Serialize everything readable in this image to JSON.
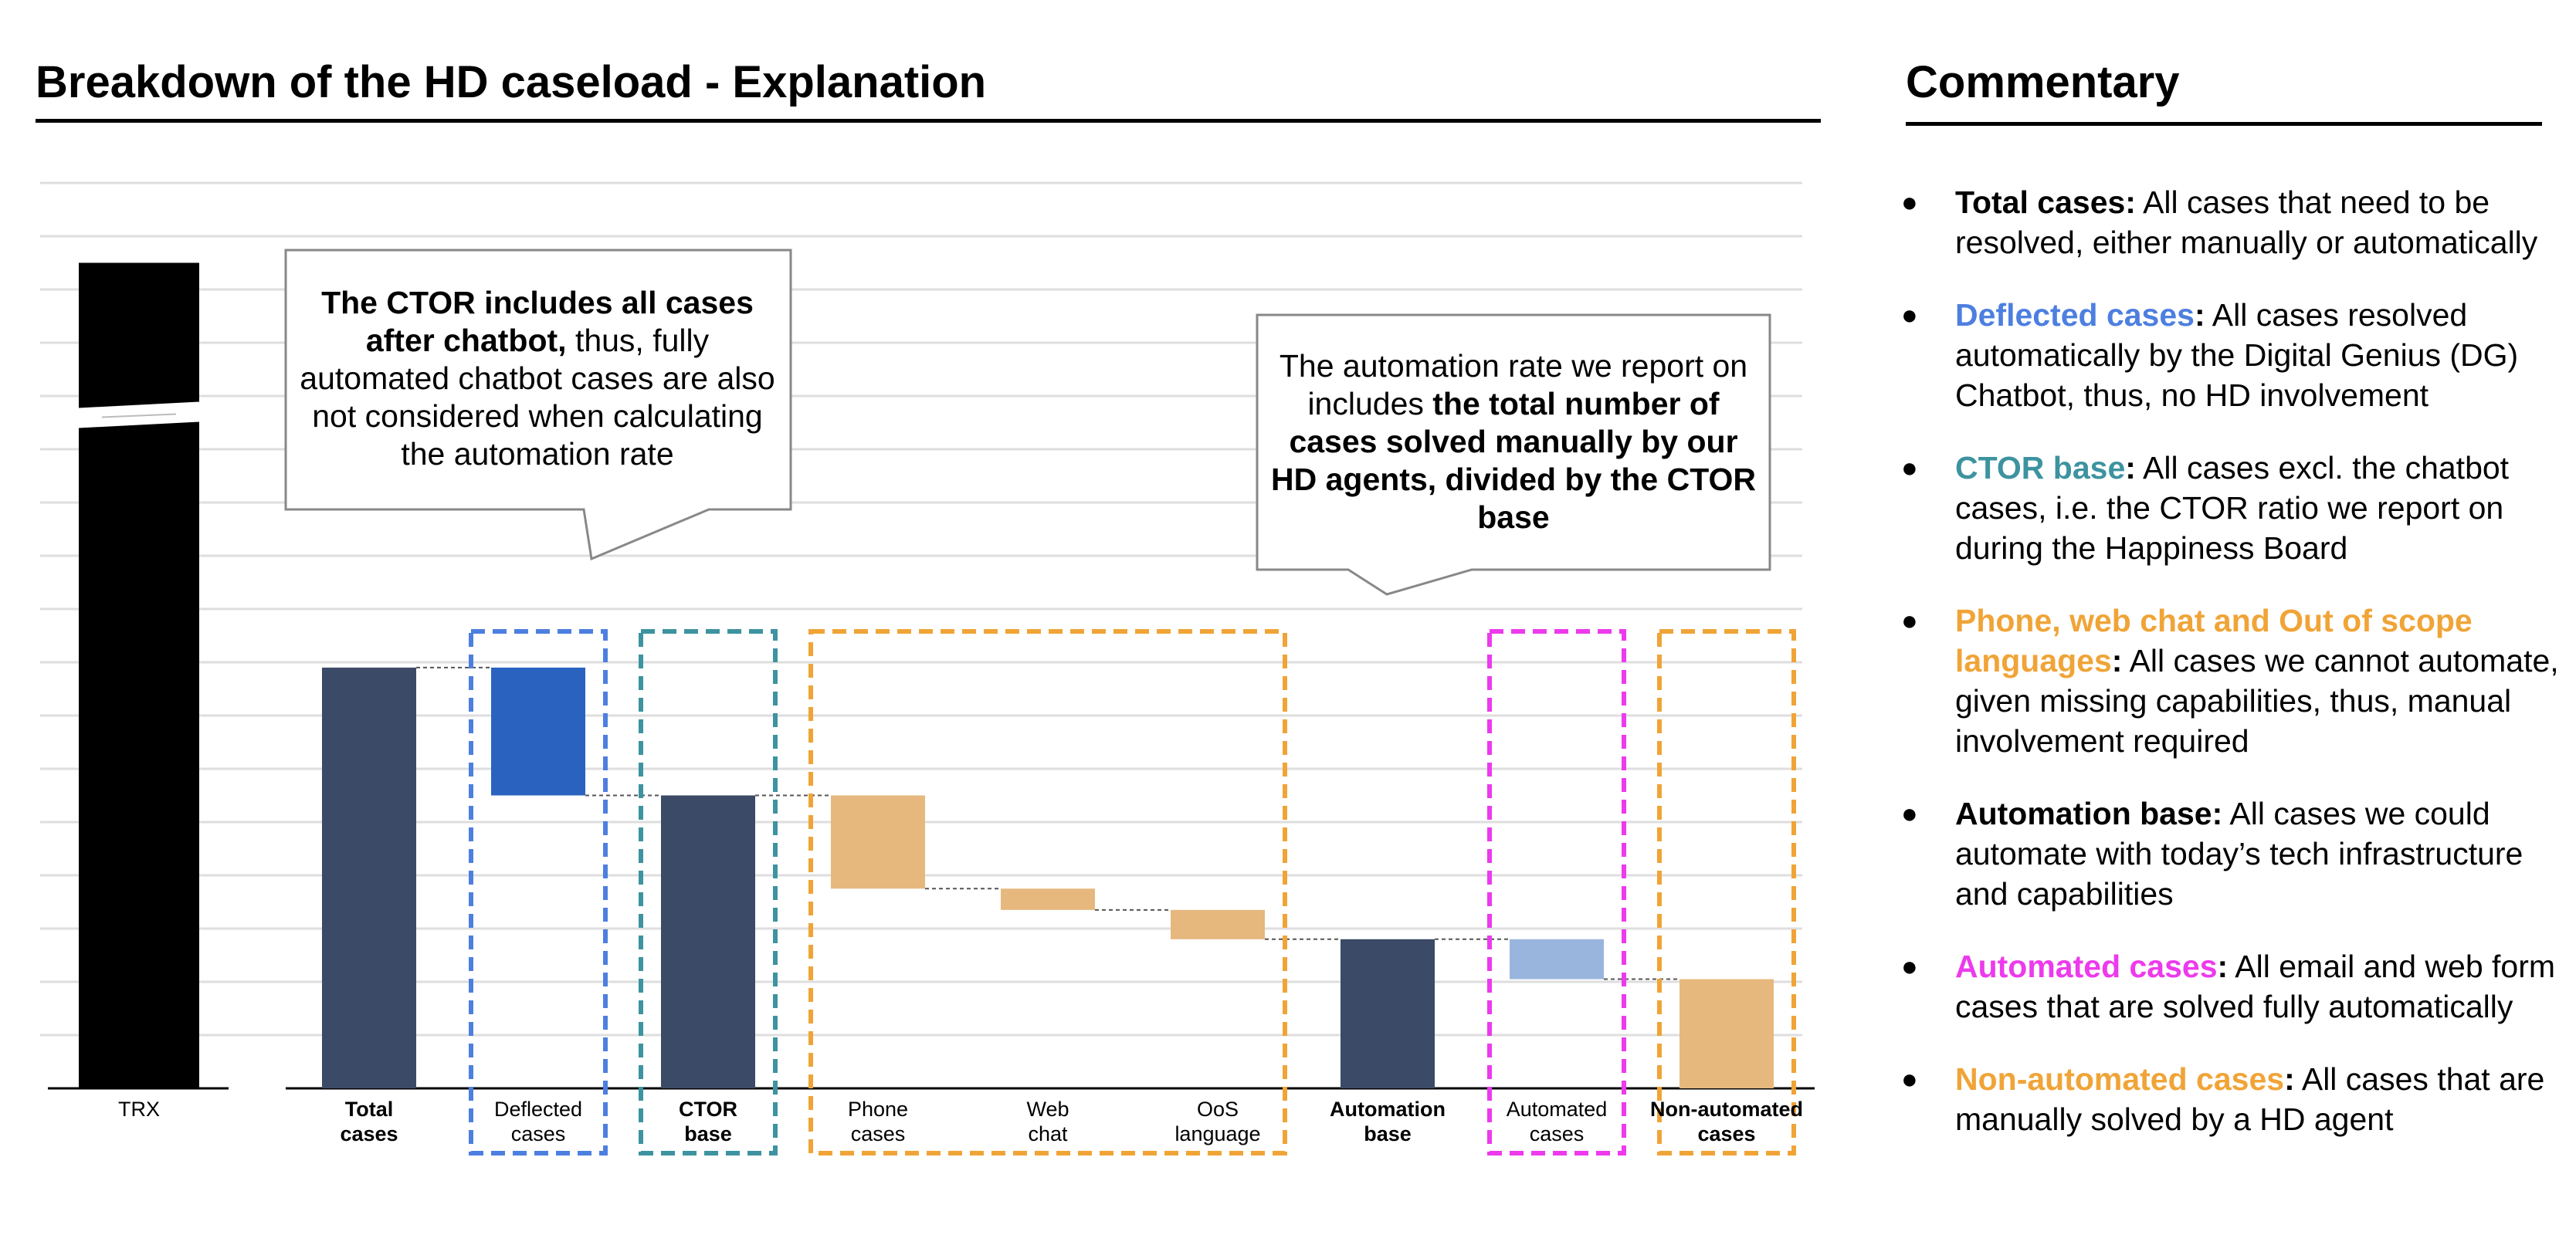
{
  "left_title": "Breakdown of the HD caseload - Explanation",
  "right_title": "Commentary",
  "chart_data": {
    "type": "bar",
    "subtype": "waterfall",
    "ylim": [
      0,
      170
    ],
    "grid": true,
    "categories": [
      "TRX",
      "Total cases",
      "Deflected cases",
      "CTOR base",
      "Phone cases",
      "Web chat",
      "OoS language",
      "Automation base",
      "Automated cases",
      "Non-automated cases"
    ],
    "category_labels": [
      {
        "line1": "TRX",
        "line2": "",
        "bold": false
      },
      {
        "line1": "Total",
        "line2": "cases",
        "bold": true
      },
      {
        "line1": "Deflected",
        "line2": "cases",
        "bold": false
      },
      {
        "line1": "CTOR",
        "line2": "base",
        "bold": true
      },
      {
        "line1": "Phone",
        "line2": "cases",
        "bold": false
      },
      {
        "line1": "Web",
        "line2": "chat",
        "bold": false
      },
      {
        "line1": "OoS",
        "line2": "language",
        "bold": false
      },
      {
        "line1": "Automation",
        "line2": "base",
        "bold": true
      },
      {
        "line1": "Automated",
        "line2": "cases",
        "bold": false
      },
      {
        "line1": "Non-automated",
        "line2": "cases",
        "bold": true
      }
    ],
    "bars": [
      {
        "category": "TRX",
        "start": 0,
        "end": 155,
        "color": "#000000",
        "axis_break": true
      },
      {
        "category": "Total cases",
        "start": 0,
        "end": 79,
        "color": "#3b4a66"
      },
      {
        "category": "Deflected cases",
        "start": 79,
        "end": 55,
        "color": "#2a62c0"
      },
      {
        "category": "CTOR base",
        "start": 0,
        "end": 55,
        "color": "#3b4a66"
      },
      {
        "category": "Phone cases",
        "start": 55,
        "end": 37.5,
        "color": "#e6b87e"
      },
      {
        "category": "Web chat",
        "start": 37.5,
        "end": 33.5,
        "color": "#e6b87e"
      },
      {
        "category": "OoS language",
        "start": 33.5,
        "end": 28,
        "color": "#e6b87e"
      },
      {
        "category": "Automation base",
        "start": 0,
        "end": 28,
        "color": "#3b4a66"
      },
      {
        "category": "Automated cases",
        "start": 28,
        "end": 20.5,
        "color": "#9ab5dd"
      },
      {
        "category": "Non-automated cases",
        "start": 0,
        "end": 20.5,
        "color": "#e6b87e"
      }
    ],
    "highlight_groups": [
      {
        "from": 2,
        "to": 2,
        "color": "#4d7fe0"
      },
      {
        "from": 3,
        "to": 3,
        "color": "#3d939f"
      },
      {
        "from": 4,
        "to": 6,
        "color": "#f0a437"
      },
      {
        "from": 8,
        "to": 8,
        "color": "#ec3aec"
      },
      {
        "from": 9,
        "to": 9,
        "color": "#f0a437"
      }
    ],
    "callouts": [
      {
        "parts": [
          {
            "text": "The CTOR includes all cases after chatbot,",
            "bold": true
          },
          {
            "text": " thus, fully automated chatbot cases are also not considered when calculating the automation rate",
            "bold": false
          }
        ]
      },
      {
        "parts": [
          {
            "text": "The automation rate we report on includes ",
            "bold": false
          },
          {
            "text": "the total number of cases solved manually by our HD agents, divided by the CTOR base",
            "bold": true
          }
        ]
      }
    ]
  },
  "commentary": [
    {
      "term": "Total cases",
      "term_color": "#000000",
      "text": " All cases that need to be resolved, either manually or automatically"
    },
    {
      "term": "Deflected cases",
      "term_color": "#4d7fe0",
      "text": " All cases resolved automatically by the Digital Genius (DG) Chatbot, thus, no HD involvement"
    },
    {
      "term": "CTOR base",
      "term_color": "#3d939f",
      "text": " All cases excl. the chatbot cases, i.e. the CTOR ratio we report on during the Happiness Board"
    },
    {
      "term": "Phone, web chat and Out of scope languages",
      "term_color": "#f0a437",
      "text": " All cases we cannot automate, given missing capabilities, thus, manual involvement required"
    },
    {
      "term": "Automation base",
      "term_color": "#000000",
      "text": " All cases we could automate with today’s tech infrastructure and capabilities"
    },
    {
      "term": "Automated cases",
      "term_color": "#ec3aec",
      "text": " All email and web form cases that are solved fully automatically"
    },
    {
      "term": "Non-automated cases",
      "term_color": "#f0a437",
      "text": " All cases that are manually solved by a HD agent"
    }
  ]
}
